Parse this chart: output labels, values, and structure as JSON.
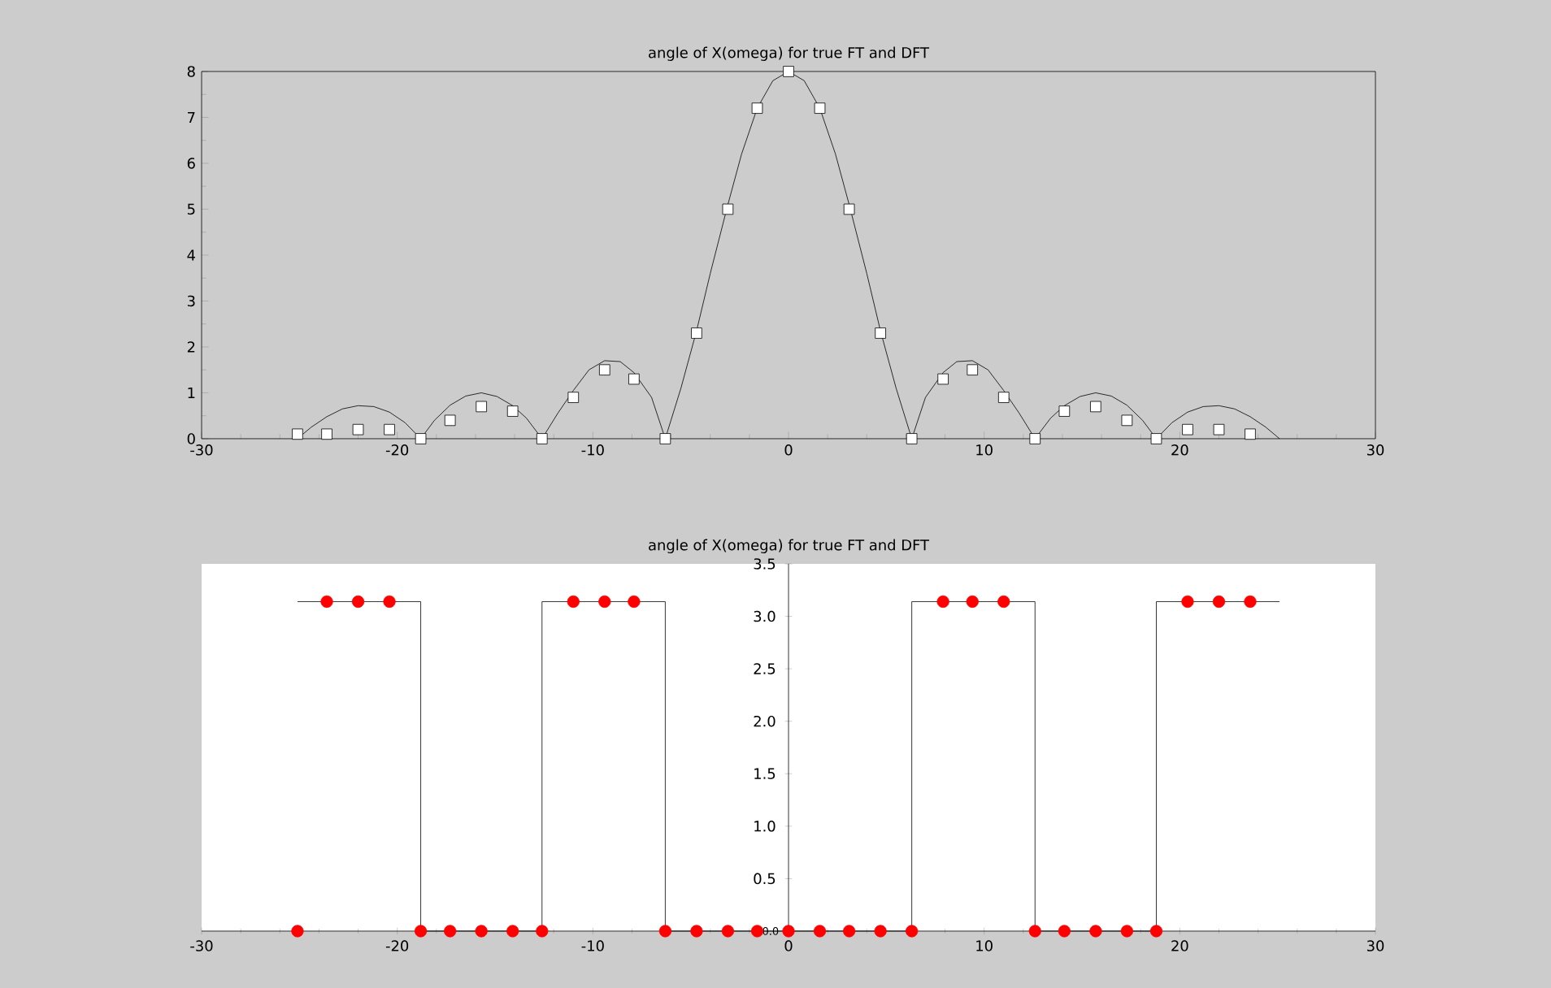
{
  "chart_data": [
    {
      "type": "line",
      "title": "angle of X(omega) for true FT and DFT",
      "xlim": [
        -30,
        30
      ],
      "ylim": [
        0,
        8
      ],
      "xticks": [
        -30,
        -20,
        -10,
        0,
        10,
        20,
        30
      ],
      "yticks": [
        0,
        1,
        2,
        3,
        4,
        5,
        6,
        7,
        8
      ],
      "series": [
        {
          "type": "line",
          "color": "#000000",
          "marker": "none",
          "x": [
            -25.1,
            -24.4,
            -23.6,
            -22.8,
            -22.0,
            -21.2,
            -20.4,
            -19.6,
            -18.8,
            -18.1,
            -17.3,
            -16.5,
            -15.7,
            -14.9,
            -14.1,
            -13.4,
            -12.6,
            -11.8,
            -11.0,
            -10.2,
            -9.4,
            -8.6,
            -7.9,
            -7.0,
            -6.3,
            -5.5,
            -4.7,
            -4.0,
            -3.1,
            -2.4,
            -1.6,
            -0.8,
            0,
            0.8,
            1.6,
            2.4,
            3.1,
            4.0,
            4.7,
            5.5,
            6.3,
            7.0,
            7.9,
            8.6,
            9.4,
            10.2,
            11.0,
            11.8,
            12.6,
            13.4,
            14.1,
            14.9,
            15.7,
            16.5,
            17.3,
            18.1,
            18.8,
            19.6,
            20.4,
            21.2,
            22.0,
            22.8,
            23.6,
            24.4,
            25.1
          ],
          "values": [
            0,
            0.25,
            0.48,
            0.65,
            0.72,
            0.7,
            0.58,
            0.35,
            0,
            0.4,
            0.73,
            0.93,
            1.0,
            0.92,
            0.72,
            0.45,
            0,
            0.55,
            1.05,
            1.5,
            1.7,
            1.68,
            1.44,
            0.9,
            0,
            1.1,
            2.35,
            3.6,
            5.1,
            6.2,
            7.2,
            7.8,
            8.0,
            7.8,
            7.2,
            6.2,
            5.1,
            3.6,
            2.35,
            1.1,
            0,
            0.9,
            1.44,
            1.68,
            1.7,
            1.5,
            1.05,
            0.55,
            0,
            0.45,
            0.72,
            0.92,
            1.0,
            0.93,
            0.73,
            0.4,
            0,
            0.35,
            0.58,
            0.7,
            0.72,
            0.65,
            0.48,
            0.25,
            0
          ]
        },
        {
          "type": "scatter",
          "color": "#ffffff",
          "marker": "square",
          "x": [
            -25.1,
            -23.6,
            -22.0,
            -20.4,
            -18.8,
            -17.3,
            -15.7,
            -14.1,
            -12.6,
            -11.0,
            -9.4,
            -7.9,
            -6.3,
            -4.7,
            -3.1,
            -1.6,
            0,
            1.6,
            3.1,
            4.7,
            6.3,
            7.9,
            9.4,
            11.0,
            12.6,
            14.1,
            15.7,
            17.3,
            18.8,
            20.4,
            22.0,
            23.6
          ],
          "values": [
            0.1,
            0.1,
            0.2,
            0.2,
            0,
            0.4,
            0.7,
            0.6,
            0,
            0.9,
            1.5,
            1.3,
            0,
            2.3,
            5.0,
            7.2,
            8.0,
            7.2,
            5.0,
            2.3,
            0,
            1.3,
            1.5,
            0.9,
            0,
            0.6,
            0.7,
            0.4,
            0,
            0.2,
            0.2,
            0.1
          ]
        }
      ]
    },
    {
      "type": "step",
      "title": "angle of X(omega) for true FT and DFT",
      "xlim": [
        -30,
        30
      ],
      "ylim": [
        0,
        3.5
      ],
      "xticks": [
        -30,
        -20,
        -10,
        0,
        10,
        20,
        30
      ],
      "yticks": [
        {
          "value": 0,
          "label": "0.0"
        },
        {
          "value": 0.5,
          "label": "0.5"
        },
        {
          "value": 1,
          "label": "1.0"
        },
        {
          "value": 1.5,
          "label": "1.5"
        },
        {
          "value": 2,
          "label": "2.0"
        },
        {
          "value": 2.5,
          "label": "2.5"
        },
        {
          "value": 3,
          "label": "3.0"
        },
        {
          "value": 3.5,
          "label": "3.5"
        }
      ],
      "series": [
        {
          "type": "step",
          "color": "#000000",
          "marker": "none",
          "x": [
            -25.1,
            -18.8,
            -12.6,
            -6.3,
            6.3,
            12.6,
            18.8,
            25.1
          ],
          "values": [
            3.14,
            0,
            3.14,
            0,
            3.14,
            0,
            3.14,
            3.14
          ]
        },
        {
          "type": "scatter",
          "color": "#ff0000",
          "marker": "circle",
          "x": [
            -25.1,
            -23.6,
            -22.0,
            -20.4,
            -18.8,
            -17.3,
            -15.7,
            -14.1,
            -12.6,
            -11.0,
            -9.4,
            -7.9,
            -6.3,
            -4.7,
            -3.1,
            -1.6,
            0,
            1.6,
            3.1,
            4.7,
            6.3,
            7.9,
            9.4,
            11.0,
            12.6,
            14.1,
            15.7,
            17.3,
            18.8,
            20.4,
            22.0,
            23.6
          ],
          "values": [
            0,
            3.14,
            3.14,
            3.14,
            0,
            0,
            0,
            0,
            0,
            3.14,
            3.14,
            3.14,
            0,
            0,
            0,
            0,
            0,
            0,
            0,
            0,
            0,
            3.14,
            3.14,
            3.14,
            0,
            0,
            0,
            0,
            0,
            3.14,
            3.14,
            3.14
          ]
        }
      ]
    }
  ]
}
